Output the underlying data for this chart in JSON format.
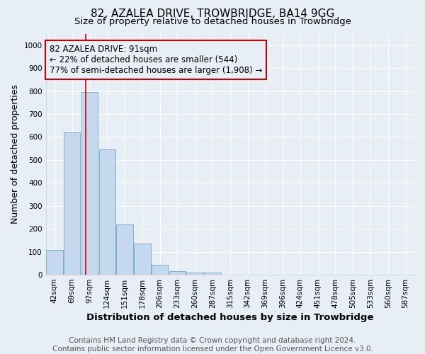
{
  "title": "82, AZALEA DRIVE, TROWBRIDGE, BA14 9GG",
  "subtitle": "Size of property relative to detached houses in Trowbridge",
  "xlabel": "Distribution of detached houses by size in Trowbridge",
  "ylabel": "Number of detached properties",
  "bar_labels": [
    "42sqm",
    "69sqm",
    "97sqm",
    "124sqm",
    "151sqm",
    "178sqm",
    "206sqm",
    "233sqm",
    "260sqm",
    "287sqm",
    "315sqm",
    "342sqm",
    "369sqm",
    "396sqm",
    "424sqm",
    "451sqm",
    "478sqm",
    "505sqm",
    "533sqm",
    "560sqm",
    "587sqm"
  ],
  "bar_values": [
    107,
    620,
    795,
    545,
    220,
    135,
    42,
    15,
    10,
    10,
    0,
    0,
    0,
    0,
    0,
    0,
    0,
    0,
    0,
    0,
    0
  ],
  "bar_color": "#c5d8ed",
  "bar_edge_color": "#7aafd4",
  "vline_x": 1.78,
  "vline_color": "#cc0000",
  "annotation_line1": "82 AZALEA DRIVE: 91sqm",
  "annotation_line2": "← 22% of detached houses are smaller (544)",
  "annotation_line3": "77% of semi-detached houses are larger (1,908) →",
  "annotation_box_color": "#cc0000",
  "ylim": [
    0,
    1050
  ],
  "yticks": [
    0,
    100,
    200,
    300,
    400,
    500,
    600,
    700,
    800,
    900,
    1000
  ],
  "footer_line1": "Contains HM Land Registry data © Crown copyright and database right 2024.",
  "footer_line2": "Contains public sector information licensed under the Open Government Licence v3.0.",
  "bg_color": "#e8eef5",
  "grid_color": "#ffffff",
  "title_fontsize": 11,
  "subtitle_fontsize": 9.5,
  "ylabel_fontsize": 9,
  "xlabel_fontsize": 9.5,
  "tick_fontsize": 7.5,
  "annotation_fontsize": 8.5,
  "footer_fontsize": 7.5
}
